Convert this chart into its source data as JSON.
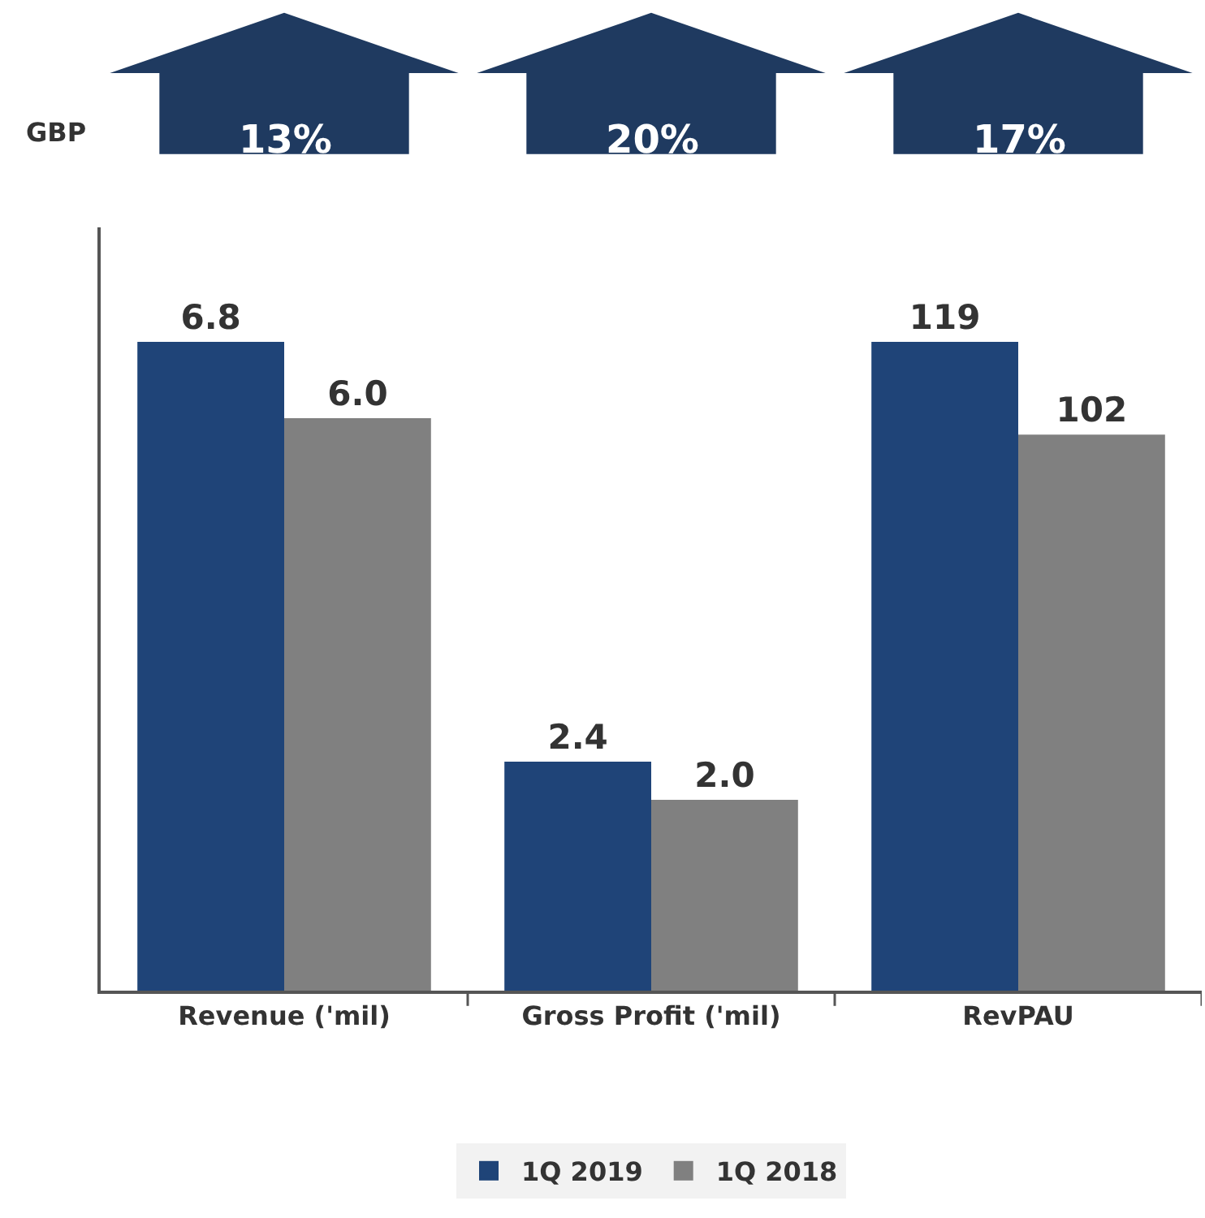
{
  "chart_data": {
    "type": "bar",
    "categories": [
      "Revenue ('mil)",
      "Gross Profit ('mil)",
      "RevPAU"
    ],
    "series": [
      {
        "name": "1Q 2019",
        "color": "#1f4478",
        "values": [
          6.8,
          2.4,
          null
        ],
        "value_labels": [
          "6.8",
          "2.4",
          null
        ]
      },
      {
        "name": "1Q 2018",
        "color": "#808080",
        "values": [
          6.0,
          2.0,
          null
        ],
        "value_labels": [
          "6.0",
          "2.0",
          null
        ]
      },
      {
        "color": "#1f4478",
        "values": [
          null,
          null,
          119
        ],
        "axis": "y2",
        "value_labels": [
          null,
          null,
          "119"
        ]
      },
      {
        "color": "#808080",
        "values": [
          null,
          null,
          102
        ],
        "axis": "y2",
        "value_labels": [
          null,
          null,
          "102"
        ]
      }
    ],
    "ylim": [
      0,
      8
    ],
    "y2lim": [
      0,
      140
    ],
    "tick_labels": "x",
    "legend": "bottom",
    "annotations": [
      "GBP",
      "13%",
      "20%",
      "17%"
    ]
  }
}
